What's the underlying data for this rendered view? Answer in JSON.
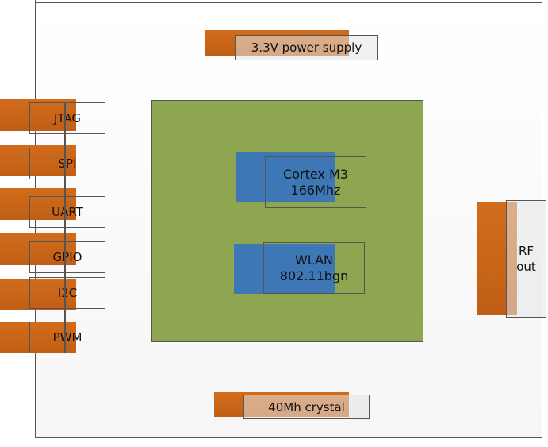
{
  "colors": {
    "orange": "#c8661a",
    "chip_green": "#8fa650",
    "core_blue": "#3d77b5"
  },
  "top": {
    "power": "3.3V power supply"
  },
  "bottom": {
    "crystal": "40Mh crystal"
  },
  "right": {
    "rf": "RF out"
  },
  "chip": {
    "cpu_line1": "Cortex M3",
    "cpu_line2": "166Mhz",
    "wlan_line1": "WLAN",
    "wlan_line2": "802.11bgn"
  },
  "pins": [
    "JTAG",
    "SPI",
    "UART",
    "GPIO",
    "I2C",
    "PWM"
  ]
}
